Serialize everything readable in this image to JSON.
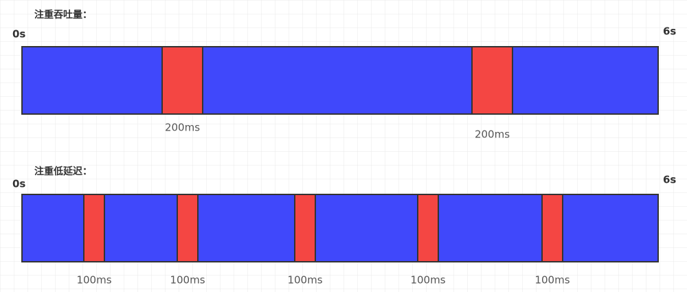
{
  "sections": [
    {
      "title": "注重吞吐量：",
      "start": "0s",
      "end": "6s",
      "pauses": [
        "200ms",
        "200ms"
      ]
    },
    {
      "title": "注重低延迟：",
      "start": "0s",
      "end": "6s",
      "pauses": [
        "100ms",
        "100ms",
        "100ms",
        "100ms",
        "100ms"
      ]
    }
  ]
}
